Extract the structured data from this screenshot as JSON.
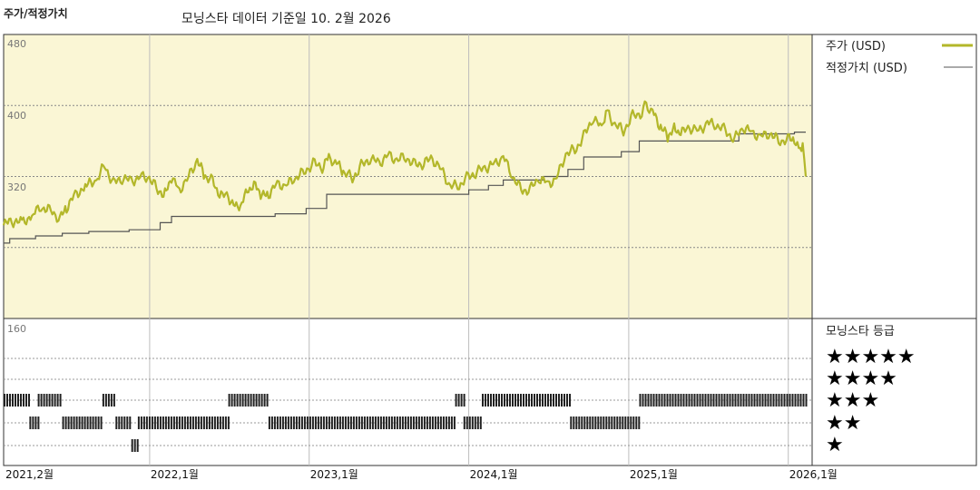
{
  "header": {
    "title": "주가/적정가치",
    "as_of": "모닝스타 데이터 기준일 10. 2월 2026"
  },
  "legend": {
    "price_label": "주가 (USD)",
    "fair_value_label": "적정가치 (USD)",
    "rating_title": "모닝스타 등급",
    "stars": [
      "★★★★★",
      "★★★★",
      "★★★",
      "★★",
      "★"
    ]
  },
  "colors": {
    "price_line": "#b3b72a",
    "fair_value_line": "#555555",
    "plot_bg": "#faf6d5",
    "rating_bar": "#222222"
  },
  "chart_data": [
    {
      "type": "line",
      "x_type": "date",
      "x_range": [
        "2021-02-01",
        "2026-02-10"
      ],
      "ylim": [
        160,
        480
      ],
      "y_ticks": [
        160,
        320,
        400,
        480
      ],
      "x_tick_labels": [
        "2021,2월",
        "2022,1월",
        "2023,1월",
        "2024,1월",
        "2025,1월",
        "2026,1월"
      ],
      "x_tick_dates": [
        "2021-02-01",
        "2022-01-01",
        "2023-01-01",
        "2024-01-01",
        "2025-01-01",
        "2026-01-01"
      ],
      "grid": true,
      "legend_position": "right",
      "series": [
        {
          "name": "주가 (USD)",
          "points": [
            [
              "2021-02-01",
              265
            ],
            [
              "2021-02-20",
              270
            ],
            [
              "2021-03-15",
              268
            ],
            [
              "2021-04-10",
              278
            ],
            [
              "2021-05-01",
              285
            ],
            [
              "2021-05-20",
              282
            ],
            [
              "2021-06-10",
              272
            ],
            [
              "2021-06-25",
              285
            ],
            [
              "2021-07-15",
              300
            ],
            [
              "2021-08-10",
              310
            ],
            [
              "2021-09-01",
              315
            ],
            [
              "2021-09-20",
              333
            ],
            [
              "2021-10-10",
              312
            ],
            [
              "2021-10-30",
              318
            ],
            [
              "2021-11-20",
              315
            ],
            [
              "2021-12-10",
              320
            ],
            [
              "2021-12-31",
              318
            ],
            [
              "2022-01-20",
              305
            ],
            [
              "2022-02-05",
              300
            ],
            [
              "2022-02-20",
              318
            ],
            [
              "2022-03-10",
              305
            ],
            [
              "2022-03-31",
              320
            ],
            [
              "2022-04-20",
              338
            ],
            [
              "2022-05-05",
              322
            ],
            [
              "2022-05-25",
              315
            ],
            [
              "2022-06-10",
              298
            ],
            [
              "2022-06-30",
              298
            ],
            [
              "2022-07-15",
              285
            ],
            [
              "2022-07-31",
              290
            ],
            [
              "2022-08-15",
              305
            ],
            [
              "2022-08-31",
              312
            ],
            [
              "2022-09-15",
              297
            ],
            [
              "2022-09-30",
              300
            ],
            [
              "2022-10-20",
              312
            ],
            [
              "2022-11-10",
              310
            ],
            [
              "2022-11-30",
              318
            ],
            [
              "2022-12-20",
              325
            ],
            [
              "2023-01-10",
              335
            ],
            [
              "2023-01-31",
              330
            ],
            [
              "2023-02-15",
              342
            ],
            [
              "2023-03-05",
              335
            ],
            [
              "2023-03-20",
              325
            ],
            [
              "2023-04-10",
              318
            ],
            [
              "2023-04-30",
              332
            ],
            [
              "2023-05-20",
              340
            ],
            [
              "2023-06-10",
              335
            ],
            [
              "2023-06-30",
              345
            ],
            [
              "2023-07-20",
              338
            ],
            [
              "2023-08-10",
              342
            ],
            [
              "2023-08-31",
              333
            ],
            [
              "2023-09-20",
              335
            ],
            [
              "2023-10-10",
              340
            ],
            [
              "2023-10-31",
              328
            ],
            [
              "2023-11-20",
              308
            ],
            [
              "2023-12-10",
              310
            ],
            [
              "2023-12-31",
              320
            ],
            [
              "2024-01-20",
              325
            ],
            [
              "2024-02-10",
              330
            ],
            [
              "2024-02-29",
              335
            ],
            [
              "2024-03-20",
              342
            ],
            [
              "2024-04-10",
              320
            ],
            [
              "2024-04-30",
              305
            ],
            [
              "2024-05-20",
              305
            ],
            [
              "2024-06-10",
              318
            ],
            [
              "2024-06-30",
              312
            ],
            [
              "2024-07-20",
              318
            ],
            [
              "2024-08-10",
              345
            ],
            [
              "2024-08-31",
              350
            ],
            [
              "2024-09-20",
              365
            ],
            [
              "2024-10-10",
              385
            ],
            [
              "2024-10-31",
              375
            ],
            [
              "2024-11-10",
              395
            ],
            [
              "2024-11-30",
              378
            ],
            [
              "2024-12-20",
              372
            ],
            [
              "2025-01-10",
              388
            ],
            [
              "2025-01-31",
              392
            ],
            [
              "2025-02-10",
              402
            ],
            [
              "2025-02-28",
              390
            ],
            [
              "2025-03-15",
              375
            ],
            [
              "2025-03-31",
              365
            ],
            [
              "2025-04-15",
              375
            ],
            [
              "2025-04-30",
              368
            ],
            [
              "2025-05-20",
              375
            ],
            [
              "2025-06-10",
              372
            ],
            [
              "2025-06-30",
              380
            ],
            [
              "2025-07-20",
              378
            ],
            [
              "2025-08-10",
              372
            ],
            [
              "2025-08-31",
              362
            ],
            [
              "2025-09-20",
              375
            ],
            [
              "2025-10-10",
              370
            ],
            [
              "2025-10-31",
              365
            ],
            [
              "2025-11-20",
              368
            ],
            [
              "2025-12-10",
              360
            ],
            [
              "2025-12-31",
              362
            ],
            [
              "2026-01-15",
              362
            ],
            [
              "2026-01-25",
              350
            ],
            [
              "2026-02-03",
              358
            ],
            [
              "2026-02-10",
              320
            ]
          ]
        },
        {
          "name": "적정가치 (USD)",
          "step": true,
          "points": [
            [
              "2021-02-01",
              245
            ],
            [
              "2021-02-15",
              250
            ],
            [
              "2021-04-15",
              253
            ],
            [
              "2021-06-15",
              256
            ],
            [
              "2021-08-15",
              258
            ],
            [
              "2021-11-15",
              260
            ],
            [
              "2022-01-25",
              268
            ],
            [
              "2022-02-20",
              275
            ],
            [
              "2022-10-15",
              278
            ],
            [
              "2022-12-25",
              284
            ],
            [
              "2023-02-10",
              300
            ],
            [
              "2023-06-15",
              300
            ],
            [
              "2023-11-01",
              300
            ],
            [
              "2024-01-01",
              305
            ],
            [
              "2024-02-15",
              310
            ],
            [
              "2024-03-20",
              316
            ],
            [
              "2024-06-20",
              320
            ],
            [
              "2024-08-15",
              328
            ],
            [
              "2024-09-20",
              342
            ],
            [
              "2024-12-15",
              348
            ],
            [
              "2025-01-25",
              360
            ],
            [
              "2025-03-15",
              360
            ],
            [
              "2025-06-30",
              360
            ],
            [
              "2025-09-10",
              368
            ],
            [
              "2026-01-15",
              370
            ],
            [
              "2026-02-10",
              370
            ]
          ]
        }
      ]
    },
    {
      "type": "rating_timeline",
      "title": "모닝스타 등급",
      "levels": [
        5,
        4,
        3,
        2,
        1
      ],
      "segments": [
        {
          "start": "2021-02-01",
          "end": "2021-04-01",
          "stars": 3
        },
        {
          "start": "2021-04-01",
          "end": "2021-04-20",
          "stars": 2
        },
        {
          "start": "2021-04-20",
          "end": "2021-06-15",
          "stars": 3
        },
        {
          "start": "2021-06-15",
          "end": "2021-09-15",
          "stars": 2
        },
        {
          "start": "2021-09-15",
          "end": "2021-10-15",
          "stars": 3
        },
        {
          "start": "2021-10-15",
          "end": "2021-11-20",
          "stars": 2
        },
        {
          "start": "2021-11-20",
          "end": "2021-12-05",
          "stars": 1
        },
        {
          "start": "2021-12-05",
          "end": "2022-06-30",
          "stars": 2
        },
        {
          "start": "2022-06-30",
          "end": "2022-09-30",
          "stars": 3
        },
        {
          "start": "2022-09-30",
          "end": "2023-12-01",
          "stars": 2
        },
        {
          "start": "2023-12-01",
          "end": "2023-12-20",
          "stars": 3
        },
        {
          "start": "2023-12-20",
          "end": "2024-01-31",
          "stars": 2
        },
        {
          "start": "2024-01-31",
          "end": "2024-08-20",
          "stars": 3
        },
        {
          "start": "2024-08-20",
          "end": "2025-01-25",
          "stars": 2
        },
        {
          "start": "2025-01-25",
          "end": "2026-02-10",
          "stars": 3
        }
      ]
    }
  ]
}
